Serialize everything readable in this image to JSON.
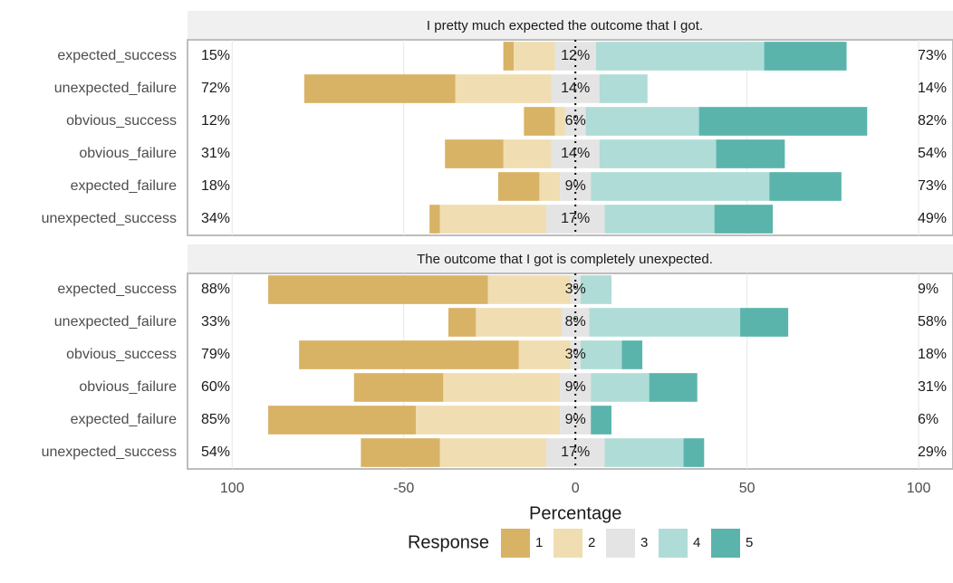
{
  "chart_data": [
    {
      "type": "bar",
      "title": "I pretty much expected the outcome that I got.",
      "categories": [
        "expected_success",
        "unexpected_failure",
        "obvious_success",
        "obvious_failure",
        "expected_failure",
        "unexpected_success"
      ],
      "series": [
        {
          "name": "1",
          "color": "#d8b365",
          "values": [
            3,
            44,
            9,
            17,
            12,
            3
          ]
        },
        {
          "name": "2",
          "color": "#f0ddb2",
          "values": [
            12,
            28,
            3,
            14,
            6,
            31
          ]
        },
        {
          "name": "3",
          "color": "#e4e4e4",
          "values": [
            12,
            14,
            6,
            14,
            9,
            17
          ]
        },
        {
          "name": "4",
          "color": "#afdcd7",
          "values": [
            49,
            14,
            33,
            34,
            52,
            32
          ]
        },
        {
          "name": "5",
          "color": "#5ab4ac",
          "values": [
            24,
            0,
            49,
            20,
            21,
            17
          ]
        }
      ],
      "low_labels": [
        "15%",
        "72%",
        "12%",
        "31%",
        "18%",
        "34%"
      ],
      "mid_labels": [
        "12%",
        "14%",
        "6%",
        "14%",
        "9%",
        "17%"
      ],
      "high_labels": [
        "73%",
        "14%",
        "82%",
        "54%",
        "73%",
        "49%"
      ],
      "xlim": [
        -113,
        110
      ],
      "xticks": [
        {
          "value": -100,
          "label": "100"
        },
        -50,
        0,
        50,
        100
      ],
      "grid": true
    },
    {
      "type": "bar",
      "title": "The outcome that I got is completely unexpected.",
      "categories": [
        "expected_success",
        "unexpected_failure",
        "obvious_success",
        "obvious_failure",
        "expected_failure",
        "unexpected_success"
      ],
      "series": [
        {
          "name": "1",
          "color": "#d8b365",
          "values": [
            64,
            8,
            64,
            26,
            43,
            23
          ]
        },
        {
          "name": "2",
          "color": "#f0ddb2",
          "values": [
            24,
            25,
            15,
            34,
            42,
            31
          ]
        },
        {
          "name": "3",
          "color": "#e4e4e4",
          "values": [
            3,
            8,
            3,
            9,
            9,
            17
          ]
        },
        {
          "name": "4",
          "color": "#afdcd7",
          "values": [
            9,
            44,
            12,
            17,
            0,
            23
          ]
        },
        {
          "name": "5",
          "color": "#5ab4ac",
          "values": [
            0,
            14,
            6,
            14,
            6,
            6
          ]
        }
      ],
      "low_labels": [
        "88%",
        "33%",
        "79%",
        "60%",
        "85%",
        "54%"
      ],
      "mid_labels": [
        "3%",
        "8%",
        "3%",
        "9%",
        "9%",
        "17%"
      ],
      "high_labels": [
        "9%",
        "58%",
        "18%",
        "31%",
        "6%",
        "29%"
      ],
      "xlim": [
        -113,
        110
      ],
      "xticks": [
        {
          "value": -100,
          "label": "100"
        },
        -50,
        0,
        50,
        100
      ],
      "grid": true,
      "xlabel": "Percentage",
      "legend_title": "Response"
    }
  ]
}
